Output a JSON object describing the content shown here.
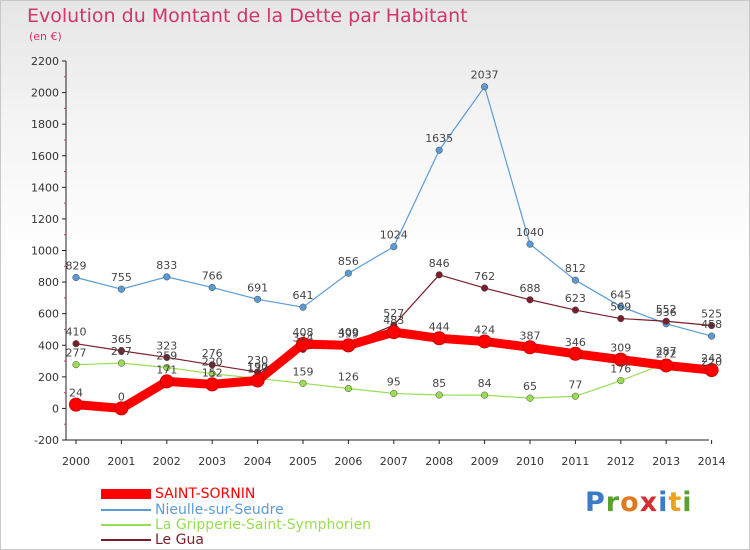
{
  "title": "Evolution du Montant de la Dette par Habitant",
  "subtitle": "(en €)",
  "logo": "Proxiti",
  "chart_data": {
    "type": "line",
    "x": [
      "2000",
      "2001",
      "2002",
      "2003",
      "2004",
      "2005",
      "2006",
      "2007",
      "2008",
      "2009",
      "2010",
      "2011",
      "2012",
      "2013",
      "2014"
    ],
    "ylim": [
      -200,
      2200
    ],
    "yticks": [
      -200,
      0,
      200,
      400,
      600,
      800,
      1000,
      1200,
      1400,
      1600,
      1800,
      2000,
      2200
    ],
    "grid": false,
    "legend_position": "bottom-left",
    "series": [
      {
        "name": "SAINT-SORNIN",
        "color": "#ff0000",
        "values": [
          24,
          0,
          171,
          152,
          177,
          408,
          399,
          483,
          444,
          424,
          387,
          346,
          309,
          272,
          243
        ]
      },
      {
        "name": "Nieulle-sur-Seudre",
        "color": "#5b9bd5",
        "values": [
          829,
          755,
          833,
          766,
          691,
          641,
          856,
          1024,
          1635,
          2037,
          1040,
          812,
          645,
          536,
          458
        ]
      },
      {
        "name": "La Gripperie-Saint-Symphorien",
        "color": "#99dd55",
        "values": [
          277,
          287,
          259,
          220,
          190,
          159,
          126,
          95,
          85,
          84,
          65,
          77,
          176,
          287,
          220
        ]
      },
      {
        "name": "Le Gua",
        "color": "#7a1f2b",
        "values": [
          410,
          365,
          323,
          276,
          230,
          374,
          409,
          527,
          846,
          762,
          688,
          623,
          569,
          552,
          525
        ]
      }
    ]
  }
}
